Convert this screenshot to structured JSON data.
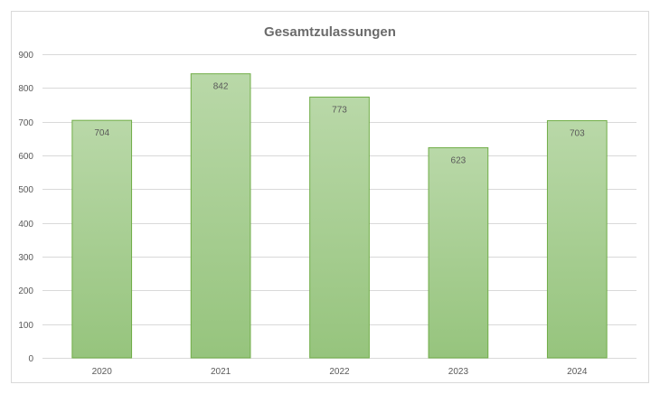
{
  "chart_data": {
    "type": "bar",
    "title": "Gesamtzulassungen",
    "categories": [
      "2020",
      "2021",
      "2022",
      "2023",
      "2024"
    ],
    "values": [
      704,
      842,
      773,
      623,
      703
    ],
    "xlabel": "",
    "ylabel": "",
    "ylim": [
      0,
      900
    ],
    "yticks": [
      0,
      100,
      200,
      300,
      400,
      500,
      600,
      700,
      800,
      900
    ],
    "grid": true,
    "legend": "none",
    "data_labels": [
      "704",
      "842",
      "773",
      "623",
      "703"
    ],
    "colors": {
      "bar_fill_top": "#b9d8a8",
      "bar_fill_bottom": "#96c47d",
      "bar_stroke": "#70ad47",
      "text": "#595959",
      "title": "#6b6b6b"
    }
  }
}
